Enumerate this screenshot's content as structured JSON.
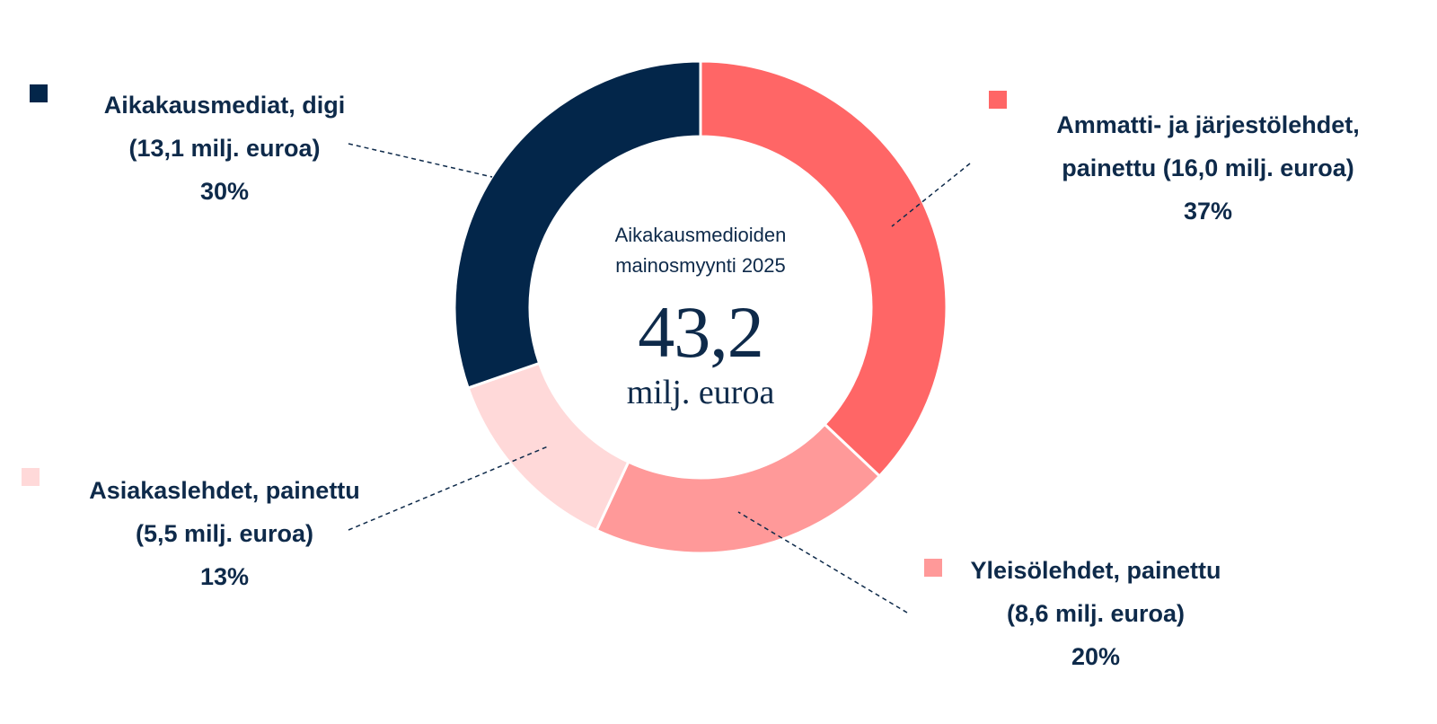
{
  "chart_data": {
    "type": "pie",
    "variant": "donut",
    "title_lines": [
      "Aikakausmedioiden",
      "mainosmyynti 2025"
    ],
    "center_value": "43,2",
    "center_unit": "milj. euroa",
    "slices": [
      {
        "key": "ammatti",
        "label_lines": [
          "Ammatti- ja järjestölehdet,",
          "painettu (16,0 milj. euroa)"
        ],
        "percent_label": "37%",
        "value": 16.0,
        "percent": 37,
        "color": "#ff6666"
      },
      {
        "key": "yleiso",
        "label_lines": [
          "Yleisölehdet, painettu",
          "(8,6 milj. euroa)"
        ],
        "percent_label": "20%",
        "value": 8.6,
        "percent": 20,
        "color": "#ff9999"
      },
      {
        "key": "asiakas",
        "label_lines": [
          "Asiakaslehdet, painettu",
          "(5,5 milj. euroa)"
        ],
        "percent_label": "13%",
        "value": 5.5,
        "percent": 13,
        "color": "#ffd9d9"
      },
      {
        "key": "digi",
        "label_lines": [
          "Aikakausmediat, digi",
          "(13,1 milj. euroa)"
        ],
        "percent_label": "30%",
        "value": 13.1,
        "percent": 30,
        "color": "#03264a"
      }
    ]
  }
}
